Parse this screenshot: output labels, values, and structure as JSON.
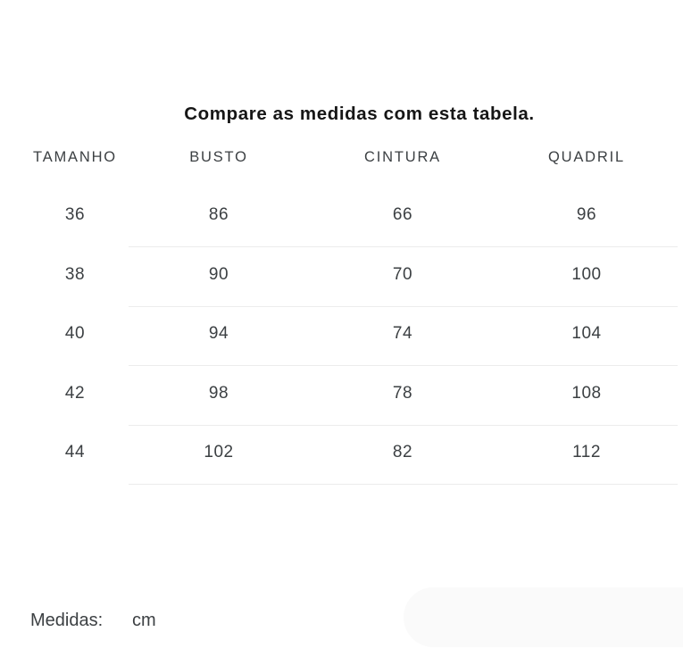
{
  "title": "Compare as medidas com esta tabela.",
  "size_table": {
    "columns": [
      "TAMANHO",
      "BUSTO",
      "CINTURA",
      "QUADRIL"
    ],
    "rows": [
      [
        "36",
        "86",
        "66",
        "96"
      ],
      [
        "38",
        "90",
        "70",
        "100"
      ],
      [
        "40",
        "94",
        "74",
        "104"
      ],
      [
        "42",
        "98",
        "78",
        "108"
      ],
      [
        "44",
        "102",
        "82",
        "112"
      ]
    ]
  },
  "footer": {
    "label": "Medidas:",
    "unit": "cm"
  },
  "colors": {
    "title_text": "#161616",
    "body_text": "#3c4043",
    "divider": "#ececec",
    "pill_background": "#fafafa",
    "page_background": "#ffffff"
  }
}
